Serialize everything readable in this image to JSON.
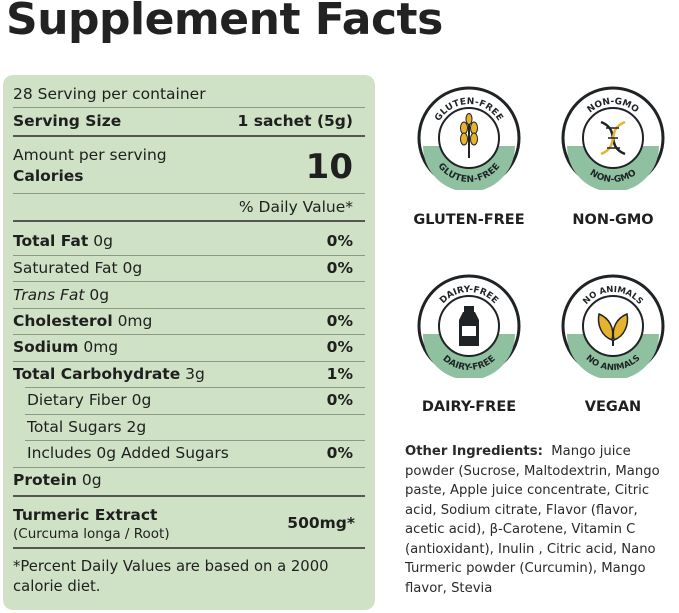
{
  "title": "Supplement Facts",
  "colors": {
    "panel_bg": "#cfe2c6",
    "badge_ring": "#1f2326",
    "badge_accent": "#8fc1a1"
  },
  "facts": {
    "servings_per_container": "28 Serving per container",
    "serving_size_label": "Serving Size",
    "serving_size_value": "1 sachet (5g)",
    "amount_per_serving": "Amount per serving",
    "calories_label": "Calories",
    "calories_value": "10",
    "daily_value_header": "% Daily Value*",
    "rows": [
      {
        "name": "Total Fat",
        "amount": " 0g",
        "dv": "0%"
      },
      {
        "name": "Saturated Fat 0g",
        "amount": "",
        "dv": "0%"
      },
      {
        "name": "Trans Fat",
        "amount": " 0g",
        "dv": ""
      },
      {
        "name": "Cholesterol",
        "amount": " 0mg",
        "dv": "0%"
      },
      {
        "name": "Sodium",
        "amount": " 0mg",
        "dv": "0%"
      },
      {
        "name": "Total Carbohydrate",
        "amount": " 3g",
        "dv": "1%"
      },
      {
        "name": "Dietary Fiber 0g",
        "amount": "",
        "dv": "0%"
      },
      {
        "name": "Total Sugars 2g",
        "amount": "",
        "dv": ""
      },
      {
        "name": "Includes 0g Added Sugars",
        "amount": "",
        "dv": "0%"
      },
      {
        "name": "Protein",
        "amount": " 0g",
        "dv": ""
      }
    ],
    "turmeric_name": "Turmeric Extract",
    "turmeric_sub": "(Curcuma longa / Root)",
    "turmeric_value": "500mg*",
    "footnote_line1": "*Percent Daily Values are based on a 2000",
    "footnote_line2": "calorie diet."
  },
  "badges": [
    {
      "top_text": "GLUTEN-FREE",
      "bottom_text": "GLUTEN-FREE",
      "label": "GLUTEN-FREE",
      "icon": "wheat-icon"
    },
    {
      "top_text": "NON-GMO",
      "bottom_text": "NON-GMO",
      "label": "NON-GMO",
      "icon": "dna-icon"
    },
    {
      "top_text": "DAIRY-FREE",
      "bottom_text": "DAIRY-FREE",
      "label": "DAIRY-FREE",
      "icon": "milk-bottle-icon"
    },
    {
      "top_text": "NO ANIMALS",
      "bottom_text": "NO ANIMALS",
      "label": "VEGAN",
      "icon": "leaf-icon"
    }
  ],
  "ingredients": {
    "heading": "Other Ingredients:",
    "text": "Mango juice powder (Sucrose, Maltodextrin, Mango paste, Apple juice concentrate, Citric acid, Sodium citrate, Flavor (flavor, acetic acid), β-Carotene, Vitamin C (antioxidant), Inulin , Citric acid, Nano Turmeric powder (Curcumin), Mango flavor, Stevia"
  }
}
